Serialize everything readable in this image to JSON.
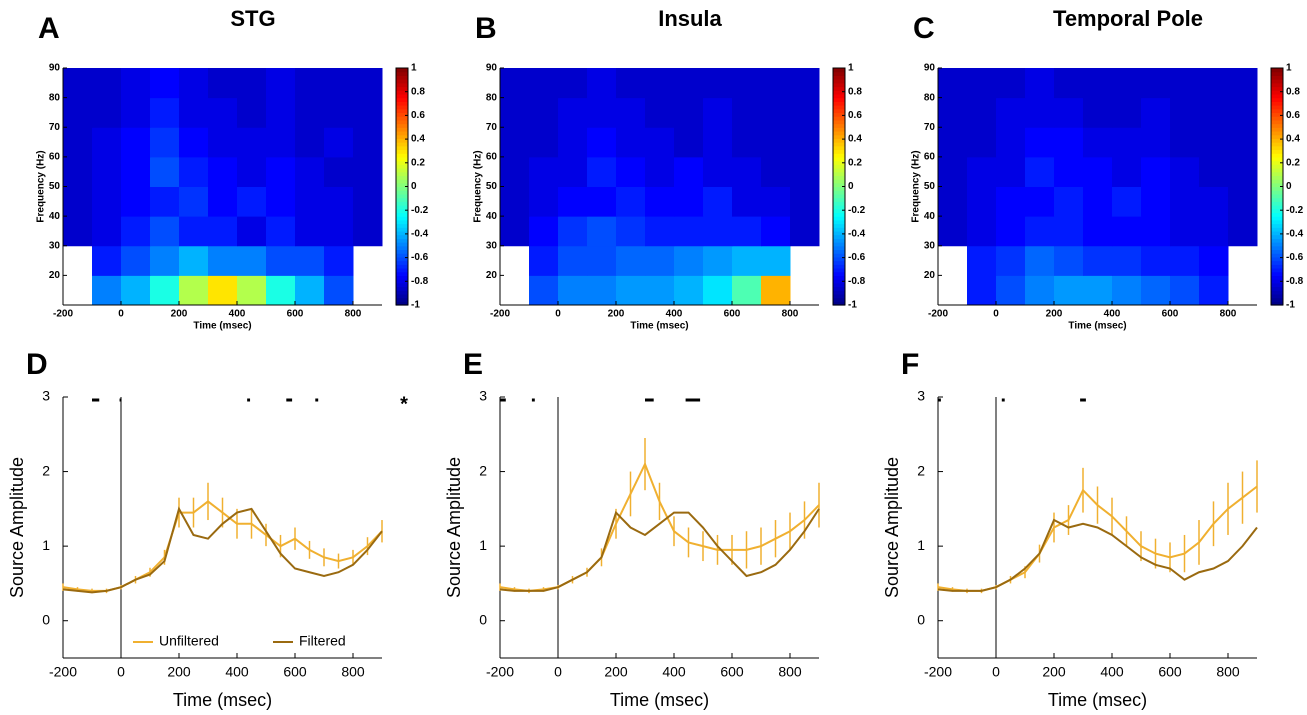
{
  "chart_data": [
    {
      "type": "heatmap",
      "label": "A",
      "title": "STG",
      "title_color": "#800080",
      "ylabel": "Frequency (Hz)",
      "xlabel": "Time (msec)",
      "colormap": "jet",
      "clim": [
        -1,
        1
      ],
      "cticks": [
        1,
        0.8,
        0.6,
        0.4,
        0.2,
        0,
        -0.2,
        -0.4,
        -0.6,
        -0.8,
        -1
      ],
      "xlim": [
        -200,
        900
      ],
      "xticks": [
        -200,
        0,
        200,
        400,
        600,
        800
      ],
      "ylim": [
        10,
        90
      ],
      "yticks": [
        20,
        30,
        40,
        50,
        60,
        70,
        80,
        90
      ],
      "x_bins": [
        -200,
        -100,
        0,
        100,
        200,
        300,
        400,
        500,
        600,
        700,
        800,
        900
      ],
      "y_bins": [
        10,
        20,
        30,
        40,
        50,
        60,
        70,
        80,
        90
      ],
      "z": [
        [
          null,
          -0.5,
          -0.4,
          -0.2,
          0.1,
          0.3,
          0.1,
          -0.2,
          -0.4,
          -0.6,
          null
        ],
        [
          null,
          -0.7,
          -0.6,
          -0.5,
          -0.4,
          -0.5,
          -0.5,
          -0.6,
          -0.6,
          -0.7,
          null
        ],
        [
          -0.85,
          -0.8,
          -0.7,
          -0.6,
          -0.7,
          -0.7,
          -0.8,
          -0.7,
          -0.8,
          -0.8,
          -0.85
        ],
        [
          -0.85,
          -0.8,
          -0.75,
          -0.7,
          -0.65,
          -0.75,
          -0.7,
          -0.75,
          -0.8,
          -0.8,
          -0.85
        ],
        [
          -0.85,
          -0.8,
          -0.75,
          -0.6,
          -0.7,
          -0.75,
          -0.8,
          -0.75,
          -0.8,
          -0.85,
          -0.85
        ],
        [
          -0.85,
          -0.8,
          -0.75,
          -0.65,
          -0.75,
          -0.8,
          -0.8,
          -0.8,
          -0.85,
          -0.8,
          -0.85
        ],
        [
          -0.85,
          -0.85,
          -0.8,
          -0.7,
          -0.8,
          -0.8,
          -0.85,
          -0.8,
          -0.85,
          -0.85,
          -0.85
        ],
        [
          -0.85,
          -0.85,
          -0.8,
          -0.75,
          -0.8,
          -0.85,
          -0.85,
          -0.8,
          -0.85,
          -0.85,
          -0.85
        ]
      ]
    },
    {
      "type": "heatmap",
      "label": "B",
      "title": "Insula",
      "title_color": "#ff1010",
      "ylabel": "Frequency (Hz)",
      "xlabel": "Time (msec)",
      "colormap": "jet",
      "clim": [
        -1,
        1
      ],
      "cticks": [
        1,
        0.8,
        0.6,
        0.4,
        0.2,
        0,
        -0.2,
        -0.4,
        -0.6,
        -0.8,
        -1
      ],
      "xlim": [
        -200,
        900
      ],
      "xticks": [
        -200,
        0,
        200,
        400,
        600,
        800
      ],
      "ylim": [
        10,
        90
      ],
      "yticks": [
        20,
        30,
        40,
        50,
        60,
        70,
        80,
        90
      ],
      "x_bins": [
        -200,
        -100,
        0,
        100,
        200,
        300,
        400,
        500,
        600,
        700,
        800,
        900
      ],
      "y_bins": [
        10,
        20,
        30,
        40,
        50,
        60,
        70,
        80,
        90
      ],
      "z": [
        [
          null,
          -0.6,
          -0.5,
          -0.5,
          -0.45,
          -0.45,
          -0.4,
          -0.3,
          -0.1,
          0.4,
          null
        ],
        [
          null,
          -0.7,
          -0.6,
          -0.6,
          -0.55,
          -0.55,
          -0.5,
          -0.45,
          -0.4,
          -0.4,
          null
        ],
        [
          -0.85,
          -0.75,
          -0.65,
          -0.6,
          -0.65,
          -0.7,
          -0.7,
          -0.7,
          -0.7,
          -0.75,
          -0.85
        ],
        [
          -0.85,
          -0.8,
          -0.75,
          -0.75,
          -0.7,
          -0.75,
          -0.75,
          -0.7,
          -0.8,
          -0.8,
          -0.85
        ],
        [
          -0.85,
          -0.8,
          -0.8,
          -0.7,
          -0.75,
          -0.8,
          -0.75,
          -0.8,
          -0.8,
          -0.85,
          -0.85
        ],
        [
          -0.85,
          -0.85,
          -0.8,
          -0.75,
          -0.8,
          -0.8,
          -0.85,
          -0.8,
          -0.85,
          -0.85,
          -0.85
        ],
        [
          -0.85,
          -0.85,
          -0.8,
          -0.8,
          -0.8,
          -0.85,
          -0.85,
          -0.8,
          -0.85,
          -0.85,
          -0.85
        ],
        [
          -0.85,
          -0.85,
          -0.85,
          -0.8,
          -0.85,
          -0.85,
          -0.85,
          -0.85,
          -0.85,
          -0.85,
          -0.85
        ]
      ]
    },
    {
      "type": "heatmap",
      "label": "C",
      "title": "Temporal Pole",
      "title_color": "#1010ff",
      "ylabel": "Frequency (Hz)",
      "xlabel": "Time (msec)",
      "colormap": "jet",
      "clim": [
        -1,
        1
      ],
      "cticks": [
        1,
        0.8,
        0.6,
        0.4,
        0.2,
        0,
        -0.2,
        -0.4,
        -0.6,
        -0.8,
        -1
      ],
      "xlim": [
        -200,
        900
      ],
      "xticks": [
        -200,
        0,
        200,
        400,
        600,
        800
      ],
      "ylim": [
        10,
        90
      ],
      "yticks": [
        20,
        30,
        40,
        50,
        60,
        70,
        80,
        90
      ],
      "x_bins": [
        -200,
        -100,
        0,
        100,
        200,
        300,
        400,
        500,
        600,
        700,
        800,
        900
      ],
      "y_bins": [
        10,
        20,
        30,
        40,
        50,
        60,
        70,
        80,
        90
      ],
      "z": [
        [
          null,
          -0.7,
          -0.6,
          -0.5,
          -0.45,
          -0.45,
          -0.5,
          -0.55,
          -0.6,
          -0.7,
          null
        ],
        [
          null,
          -0.7,
          -0.65,
          -0.55,
          -0.6,
          -0.65,
          -0.65,
          -0.7,
          -0.7,
          -0.75,
          null
        ],
        [
          -0.85,
          -0.8,
          -0.75,
          -0.7,
          -0.7,
          -0.75,
          -0.75,
          -0.75,
          -0.8,
          -0.8,
          -0.85
        ],
        [
          -0.85,
          -0.8,
          -0.75,
          -0.75,
          -0.7,
          -0.75,
          -0.7,
          -0.75,
          -0.8,
          -0.8,
          -0.85
        ],
        [
          -0.85,
          -0.8,
          -0.8,
          -0.7,
          -0.75,
          -0.75,
          -0.8,
          -0.75,
          -0.8,
          -0.85,
          -0.85
        ],
        [
          -0.85,
          -0.85,
          -0.8,
          -0.75,
          -0.75,
          -0.8,
          -0.8,
          -0.8,
          -0.85,
          -0.85,
          -0.85
        ],
        [
          -0.85,
          -0.85,
          -0.8,
          -0.8,
          -0.8,
          -0.85,
          -0.85,
          -0.8,
          -0.85,
          -0.85,
          -0.85
        ],
        [
          -0.85,
          -0.85,
          -0.85,
          -0.8,
          -0.85,
          -0.85,
          -0.85,
          -0.85,
          -0.85,
          -0.85,
          -0.85
        ]
      ]
    },
    {
      "type": "line",
      "label": "D",
      "ylabel": "Source Amplitude",
      "xlabel": "Time (msec)",
      "xlim": [
        -200,
        900
      ],
      "xticks": [
        -200,
        0,
        200,
        400,
        600,
        800
      ],
      "ylim": [
        -0.5,
        3
      ],
      "yticks": [
        0,
        1,
        2,
        3
      ],
      "onset": 0,
      "legend": "lower left",
      "x": [
        -200,
        -150,
        -100,
        -50,
        0,
        50,
        100,
        150,
        200,
        250,
        300,
        350,
        400,
        450,
        500,
        550,
        600,
        650,
        700,
        750,
        800,
        850,
        900
      ],
      "series": [
        {
          "name": "Unfiltered",
          "color": "#f0b030",
          "values": [
            0.45,
            0.42,
            0.4,
            0.4,
            0.45,
            0.55,
            0.65,
            0.85,
            1.45,
            1.45,
            1.6,
            1.45,
            1.3,
            1.3,
            1.15,
            1.0,
            1.1,
            0.95,
            0.85,
            0.8,
            0.85,
            1.0,
            1.2
          ],
          "errors": [
            0.05,
            0.03,
            0.03,
            0.03,
            0.03,
            0.05,
            0.06,
            0.1,
            0.2,
            0.2,
            0.25,
            0.2,
            0.2,
            0.2,
            0.15,
            0.15,
            0.15,
            0.12,
            0.12,
            0.1,
            0.1,
            0.12,
            0.15
          ]
        },
        {
          "name": "Filtered",
          "color": "#9a6a10",
          "values": [
            0.42,
            0.4,
            0.38,
            0.4,
            0.45,
            0.55,
            0.62,
            0.8,
            1.5,
            1.15,
            1.1,
            1.3,
            1.45,
            1.5,
            1.2,
            0.9,
            0.7,
            0.65,
            0.6,
            0.65,
            0.75,
            0.95,
            1.2
          ]
        }
      ],
      "significance": [
        [
          -100,
          -75
        ],
        [
          -5,
          0
        ],
        [
          435,
          445
        ],
        [
          570,
          590
        ],
        [
          670,
          680
        ]
      ],
      "annotation": "*"
    },
    {
      "type": "line",
      "label": "E",
      "ylabel": "Source Amplitude",
      "xlabel": "Time (msec)",
      "xlim": [
        -200,
        900
      ],
      "xticks": [
        -200,
        0,
        200,
        400,
        600,
        800
      ],
      "ylim": [
        -0.5,
        3
      ],
      "yticks": [
        0,
        1,
        2,
        3
      ],
      "onset": 0,
      "x": [
        -200,
        -150,
        -100,
        -50,
        0,
        50,
        100,
        150,
        200,
        250,
        300,
        350,
        400,
        450,
        500,
        550,
        600,
        650,
        700,
        750,
        800,
        850,
        900
      ],
      "series": [
        {
          "name": "Unfiltered",
          "color": "#f0b030",
          "values": [
            0.45,
            0.42,
            0.4,
            0.42,
            0.45,
            0.55,
            0.65,
            0.85,
            1.3,
            1.7,
            2.1,
            1.6,
            1.2,
            1.05,
            1.0,
            0.95,
            0.95,
            0.95,
            1.0,
            1.1,
            1.2,
            1.35,
            1.55
          ],
          "errors": [
            0.05,
            0.03,
            0.03,
            0.03,
            0.03,
            0.05,
            0.06,
            0.12,
            0.2,
            0.3,
            0.35,
            0.25,
            0.2,
            0.2,
            0.2,
            0.2,
            0.2,
            0.25,
            0.25,
            0.25,
            0.25,
            0.25,
            0.3
          ]
        },
        {
          "name": "Filtered",
          "color": "#9a6a10",
          "values": [
            0.42,
            0.4,
            0.4,
            0.4,
            0.45,
            0.55,
            0.65,
            0.85,
            1.45,
            1.25,
            1.15,
            1.3,
            1.45,
            1.45,
            1.25,
            1.0,
            0.8,
            0.6,
            0.65,
            0.75,
            0.95,
            1.2,
            1.5
          ]
        }
      ],
      "significance": [
        [
          -200,
          -180
        ],
        [
          -90,
          -80
        ],
        [
          300,
          330
        ],
        [
          440,
          490
        ]
      ]
    },
    {
      "type": "line",
      "label": "F",
      "ylabel": "Source Amplitude",
      "xlabel": "Time (msec)",
      "xlim": [
        -200,
        900
      ],
      "xticks": [
        -200,
        0,
        200,
        400,
        600,
        800
      ],
      "ylim": [
        -0.5,
        3
      ],
      "yticks": [
        0,
        1,
        2,
        3
      ],
      "onset": 0,
      "x": [
        -200,
        -150,
        -100,
        -50,
        0,
        50,
        100,
        150,
        200,
        250,
        300,
        350,
        400,
        450,
        500,
        550,
        600,
        650,
        700,
        750,
        800,
        850,
        900
      ],
      "series": [
        {
          "name": "Unfiltered",
          "color": "#f0b030",
          "values": [
            0.45,
            0.42,
            0.4,
            0.4,
            0.45,
            0.55,
            0.65,
            0.9,
            1.25,
            1.35,
            1.75,
            1.55,
            1.4,
            1.2,
            1.0,
            0.9,
            0.85,
            0.9,
            1.05,
            1.3,
            1.5,
            1.65,
            1.8
          ],
          "errors": [
            0.05,
            0.03,
            0.03,
            0.03,
            0.03,
            0.05,
            0.08,
            0.12,
            0.2,
            0.2,
            0.3,
            0.25,
            0.25,
            0.2,
            0.2,
            0.2,
            0.2,
            0.25,
            0.3,
            0.3,
            0.35,
            0.35,
            0.35
          ]
        },
        {
          "name": "Filtered",
          "color": "#9a6a10",
          "values": [
            0.42,
            0.4,
            0.4,
            0.4,
            0.45,
            0.55,
            0.7,
            0.9,
            1.35,
            1.25,
            1.3,
            1.25,
            1.15,
            1.0,
            0.85,
            0.75,
            0.7,
            0.55,
            0.65,
            0.7,
            0.8,
            1.0,
            1.25
          ]
        }
      ],
      "significance": [
        [
          -200,
          -190
        ],
        [
          20,
          30
        ],
        [
          290,
          310
        ]
      ]
    }
  ]
}
